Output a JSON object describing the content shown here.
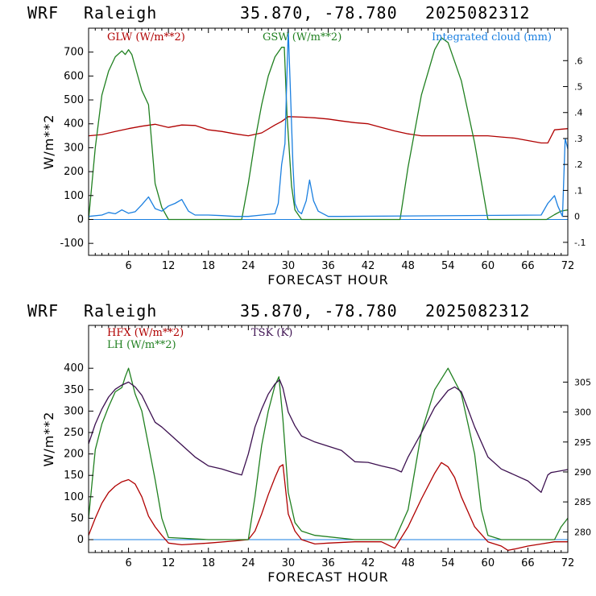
{
  "charts": [
    {
      "header": {
        "model": "WRF",
        "station": "Raleigh",
        "coords": "35.870, -78.780",
        "init": "2025082312"
      },
      "chart_data": {
        "type": "line",
        "xlabel": "FORECAST HOUR",
        "ylabel": "W/m**2",
        "xlim": [
          0,
          72
        ],
        "ylim": [
          -150,
          800
        ],
        "xticks": [
          6,
          12,
          18,
          24,
          30,
          36,
          42,
          48,
          54,
          60,
          66,
          72
        ],
        "yticks": [
          -100,
          0,
          100,
          200,
          300,
          400,
          500,
          600,
          700
        ],
        "ylim_right": [
          -0.15,
          0.725
        ],
        "yticks_right": [
          -0.1,
          0,
          0.1,
          0.2,
          0.3,
          0.4,
          0.5,
          0.6
        ],
        "yticks_right_labels": [
          "-.1",
          "0",
          ".1",
          ".2",
          ".3",
          ".4",
          ".5",
          ".6"
        ],
        "legend": [
          "GLW (W/m**2)",
          "GSW (W/m**2)",
          "Integrated cloud (mm)"
        ],
        "series": [
          {
            "name": "GLW (W/m**2)",
            "color": "#b00000",
            "axis": "left",
            "x": [
              0,
              2,
              4,
              6,
              8,
              10,
              12,
              14,
              16,
              18,
              20,
              22,
              24,
              26,
              28,
              29,
              30,
              32,
              34,
              36,
              38,
              40,
              42,
              44,
              46,
              48,
              50,
              52,
              54,
              56,
              58,
              60,
              62,
              64,
              66,
              68,
              69,
              70,
              72
            ],
            "y": [
              350,
              355,
              368,
              380,
              390,
              398,
              385,
              395,
              393,
              375,
              368,
              358,
              350,
              362,
              395,
              410,
              430,
              428,
              425,
              420,
              412,
              405,
              400,
              385,
              370,
              358,
              350,
              350,
              350,
              350,
              350,
              350,
              345,
              340,
              330,
              320,
              320,
              375,
              380
            ]
          },
          {
            "name": "GSW (W/m**2)",
            "color": "#208020",
            "axis": "left",
            "x": [
              0,
              1,
              2,
              3,
              4,
              5,
              5.5,
              6,
              6.5,
              7,
              8,
              9,
              10,
              11,
              12,
              23,
              24,
              25,
              26,
              27,
              28,
              29,
              29.4,
              29.8,
              30.5,
              31,
              32,
              46.8,
              48,
              50,
              52,
              53,
              54,
              56,
              58,
              60,
              68.8,
              70,
              71,
              72
            ],
            "y": [
              0,
              300,
              520,
              620,
              680,
              705,
              690,
              710,
              690,
              640,
              540,
              480,
              150,
              50,
              0,
              0,
              150,
              330,
              480,
              600,
              680,
              720,
              720,
              440,
              140,
              40,
              0,
              0,
              220,
              520,
              710,
              760,
              740,
              580,
              320,
              0,
              0,
              20,
              35,
              40
            ]
          },
          {
            "name": "Integrated cloud (mm)",
            "color": "#1a7fe0",
            "axis": "right",
            "x": [
              0,
              2,
              3,
              4,
              5,
              6,
              7,
              8,
              9,
              10,
              11,
              12,
              13,
              14,
              15,
              16,
              18,
              20,
              22,
              24,
              26,
              27,
              28,
              28.5,
              29,
              29.5,
              30,
              30.3,
              30.7,
              31,
              31.5,
              32,
              32.7,
              33.2,
              33.8,
              34.5,
              36,
              38,
              68,
              69,
              70,
              70.5,
              71.2,
              71.6,
              72
            ],
            "y": [
              0,
              0.005,
              0.015,
              0.01,
              0.025,
              0.012,
              0.018,
              0.045,
              0.075,
              0.03,
              0.02,
              0.04,
              0.05,
              0.065,
              0.02,
              0.005,
              0.005,
              0.003,
              0.0,
              0.0,
              0.005,
              0.008,
              0.01,
              0.05,
              0.2,
              0.28,
              0.72,
              0.5,
              0.2,
              0.05,
              0.02,
              0.01,
              0.06,
              0.14,
              0.06,
              0.02,
              0.0,
              0.0,
              0.005,
              0.05,
              0.08,
              0.04,
              0.0,
              0.3,
              0.26
            ]
          }
        ]
      }
    },
    {
      "header": {
        "model": "WRF",
        "station": "Raleigh",
        "coords": "35.870, -78.780",
        "init": "2025082312"
      },
      "chart_data": {
        "type": "line",
        "xlabel": "FORECAST HOUR",
        "ylabel": "W/m**2",
        "xlim": [
          0,
          72
        ],
        "ylim": [
          -30,
          500
        ],
        "xticks": [
          6,
          12,
          18,
          24,
          30,
          36,
          42,
          48,
          54,
          60,
          66,
          72
        ],
        "yticks": [
          0,
          50,
          100,
          150,
          200,
          250,
          300,
          350,
          400
        ],
        "ylim_right": [
          276.55,
          314.47
        ],
        "yticks_right": [
          280,
          285,
          290,
          295,
          300,
          305
        ],
        "yticks_right_labels": [
          "280",
          "285",
          "290",
          "295",
          "300",
          "305"
        ],
        "legend": [
          "HFX (W/m**2)",
          "LH  (W/m**2)",
          "TSK (K)"
        ],
        "series": [
          {
            "name": "HFX (W/m**2)",
            "color": "#b00000",
            "axis": "left",
            "x": [
              0,
              1,
              2,
              3,
              4,
              5,
              6,
              7,
              8,
              9,
              10,
              11,
              12,
              14,
              18,
              22,
              24,
              25,
              26,
              27,
              28,
              28.7,
              29.2,
              30,
              31,
              32,
              34,
              36,
              40,
              44,
              46,
              48,
              50,
              52,
              53,
              54,
              55,
              56,
              58,
              60,
              62,
              63,
              64,
              66,
              68,
              70,
              72
            ],
            "y": [
              10,
              50,
              85,
              110,
              125,
              135,
              140,
              130,
              100,
              55,
              30,
              10,
              -8,
              -12,
              -8,
              -3,
              0,
              20,
              60,
              105,
              145,
              170,
              175,
              60,
              20,
              0,
              -10,
              -8,
              -5,
              -5,
              -20,
              30,
              95,
              155,
              180,
              170,
              145,
              100,
              30,
              -5,
              -15,
              -25,
              -22,
              -15,
              -10,
              -5,
              -5
            ]
          },
          {
            "name": "LH  (W/m**2)",
            "color": "#208020",
            "axis": "left",
            "x": [
              0,
              1,
              2,
              3,
              4,
              5,
              5.5,
              6,
              7,
              8,
              9,
              10,
              11,
              12,
              18,
              24,
              25,
              26,
              27,
              28,
              28.6,
              29.2,
              30,
              31,
              32,
              34,
              40,
              46,
              48,
              50,
              52,
              54,
              56,
              58,
              59,
              60,
              62,
              70,
              71,
              72
            ],
            "y": [
              50,
              210,
              270,
              310,
              345,
              355,
              380,
              400,
              340,
              300,
              220,
              140,
              50,
              5,
              0,
              0,
              100,
              220,
              300,
              360,
              380,
              280,
              110,
              40,
              20,
              10,
              0,
              0,
              70,
              250,
              350,
              400,
              340,
              200,
              70,
              10,
              0,
              0,
              30,
              50
            ]
          },
          {
            "name": "TSK (K)",
            "color": "#3c1050",
            "axis": "right",
            "x": [
              0,
              1,
              2,
              3,
              4,
              5,
              6,
              7,
              8,
              9,
              10,
              11,
              12,
              14,
              16,
              18,
              20,
              22,
              23,
              24,
              25,
              26,
              27,
              28,
              28.7,
              29.2,
              30,
              31,
              32,
              34,
              36,
              38,
              40,
              42,
              44,
              46,
              47,
              48,
              50,
              52,
              54,
              55,
              56,
              57,
              58,
              60,
              62,
              64,
              66,
              68,
              69,
              69.5,
              70,
              72
            ],
            "y": [
              294.7,
              298.0,
              300.5,
              302.5,
              303.8,
              304.5,
              305.0,
              304.2,
              302.8,
              300.5,
              298.3,
              297.5,
              296.5,
              294.5,
              292.5,
              291.0,
              290.5,
              289.8,
              289.5,
              293.0,
              297.5,
              300.5,
              303.0,
              304.7,
              305.4,
              304.0,
              300.0,
              297.7,
              296.0,
              295.0,
              294.3,
              293.6,
              291.7,
              291.6,
              291.0,
              290.5,
              290.0,
              292.5,
              296.5,
              300.8,
              303.6,
              304.2,
              303.4,
              300.5,
              297.5,
              292.5,
              290.5,
              289.5,
              288.5,
              286.6,
              289.5,
              289.9,
              290.0,
              290.4
            ]
          }
        ]
      }
    }
  ]
}
